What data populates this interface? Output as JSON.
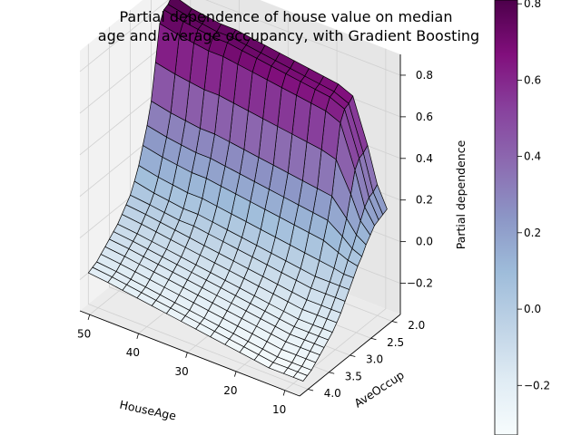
{
  "chart_data": {
    "type": "surface3d",
    "title_lines": [
      "Partial dependence of house value on median",
      "age and average occupancy, with Gradient Boosting"
    ],
    "xlabel": "HouseAge",
    "ylabel": "AveOccup",
    "zlabel": "Partial dependence",
    "x_ticks": [
      "50",
      "40",
      "30",
      "20",
      "10"
    ],
    "y_ticks": [
      "2.0",
      "2.5",
      "3.0",
      "3.5",
      "4.0"
    ],
    "z_ticks": [
      "0.8",
      "0.6",
      "0.4",
      "0.2",
      "0.0",
      "−0.2"
    ],
    "xlim": [
      7,
      52
    ],
    "ylim": [
      1.8,
      4.2
    ],
    "zlim": [
      -0.35,
      0.9
    ],
    "colormap": "BuPu",
    "colorbar": {
      "min": -0.33,
      "max": 0.81,
      "ticks": [
        "0.8",
        "0.6",
        "0.4",
        "0.2",
        "0.0",
        "−0.2"
      ]
    },
    "surface_y_values": [
      2.0,
      2.1,
      2.2,
      2.3,
      2.4,
      2.5,
      2.6,
      2.7,
      2.8,
      2.9,
      3.0,
      3.1,
      3.2,
      3.3,
      3.4,
      3.5,
      3.6,
      3.7,
      3.8,
      3.9,
      4.0
    ],
    "surface_series": [
      {
        "house_age": 52,
        "values": [
          0.81,
          0.78,
          0.77,
          0.72,
          0.55,
          0.38,
          0.28,
          0.2,
          0.12,
          0.06,
          0.01,
          -0.02,
          -0.05,
          -0.08,
          -0.1,
          -0.12,
          -0.14,
          -0.16,
          -0.18,
          -0.19,
          -0.2
        ]
      },
      {
        "house_age": 48,
        "values": [
          0.78,
          0.76,
          0.75,
          0.7,
          0.53,
          0.36,
          0.26,
          0.18,
          0.1,
          0.04,
          0.0,
          -0.03,
          -0.06,
          -0.09,
          -0.11,
          -0.13,
          -0.15,
          -0.17,
          -0.19,
          -0.2,
          -0.21
        ]
      },
      {
        "house_age": 45,
        "values": [
          0.77,
          0.75,
          0.74,
          0.69,
          0.52,
          0.35,
          0.25,
          0.17,
          0.09,
          0.03,
          -0.01,
          -0.04,
          -0.07,
          -0.1,
          -0.12,
          -0.14,
          -0.16,
          -0.18,
          -0.2,
          -0.21,
          -0.22
        ]
      },
      {
        "house_age": 42,
        "values": [
          0.76,
          0.74,
          0.73,
          0.68,
          0.51,
          0.34,
          0.24,
          0.16,
          0.08,
          0.02,
          -0.02,
          -0.05,
          -0.08,
          -0.11,
          -0.13,
          -0.15,
          -0.17,
          -0.19,
          -0.21,
          -0.22,
          -0.23
        ]
      },
      {
        "house_age": 39,
        "values": [
          0.76,
          0.74,
          0.73,
          0.68,
          0.51,
          0.34,
          0.24,
          0.16,
          0.08,
          0.02,
          -0.02,
          -0.06,
          -0.09,
          -0.12,
          -0.14,
          -0.16,
          -0.18,
          -0.2,
          -0.22,
          -0.23,
          -0.24
        ]
      },
      {
        "house_age": 36,
        "values": [
          0.75,
          0.73,
          0.72,
          0.67,
          0.5,
          0.33,
          0.23,
          0.15,
          0.07,
          0.01,
          -0.03,
          -0.07,
          -0.1,
          -0.13,
          -0.15,
          -0.17,
          -0.19,
          -0.21,
          -0.23,
          -0.24,
          -0.25
        ]
      },
      {
        "house_age": 33,
        "values": [
          0.74,
          0.72,
          0.71,
          0.66,
          0.49,
          0.32,
          0.22,
          0.14,
          0.06,
          0.0,
          -0.04,
          -0.08,
          -0.11,
          -0.14,
          -0.16,
          -0.18,
          -0.2,
          -0.22,
          -0.24,
          -0.25,
          -0.26
        ]
      },
      {
        "house_age": 30,
        "values": [
          0.73,
          0.71,
          0.7,
          0.65,
          0.48,
          0.31,
          0.21,
          0.13,
          0.05,
          -0.01,
          -0.05,
          -0.09,
          -0.12,
          -0.15,
          -0.17,
          -0.19,
          -0.21,
          -0.23,
          -0.25,
          -0.26,
          -0.27
        ]
      },
      {
        "house_age": 27,
        "values": [
          0.72,
          0.7,
          0.69,
          0.64,
          0.47,
          0.3,
          0.2,
          0.12,
          0.04,
          -0.02,
          -0.06,
          -0.1,
          -0.13,
          -0.16,
          -0.18,
          -0.2,
          -0.22,
          -0.24,
          -0.26,
          -0.27,
          -0.28
        ]
      },
      {
        "house_age": 24,
        "values": [
          0.71,
          0.69,
          0.68,
          0.63,
          0.46,
          0.29,
          0.19,
          0.11,
          0.03,
          -0.03,
          -0.07,
          -0.11,
          -0.14,
          -0.17,
          -0.19,
          -0.21,
          -0.23,
          -0.25,
          -0.27,
          -0.28,
          -0.29
        ]
      },
      {
        "house_age": 21,
        "values": [
          0.7,
          0.68,
          0.67,
          0.62,
          0.45,
          0.28,
          0.18,
          0.1,
          0.02,
          -0.04,
          -0.08,
          -0.12,
          -0.15,
          -0.18,
          -0.2,
          -0.22,
          -0.24,
          -0.26,
          -0.28,
          -0.29,
          -0.3
        ]
      },
      {
        "house_age": 18,
        "values": [
          0.69,
          0.67,
          0.66,
          0.61,
          0.44,
          0.27,
          0.17,
          0.09,
          0.01,
          -0.05,
          -0.09,
          -0.13,
          -0.16,
          -0.19,
          -0.21,
          -0.23,
          -0.25,
          -0.27,
          -0.29,
          -0.3,
          -0.31
        ]
      },
      {
        "house_age": 15,
        "values": [
          0.66,
          0.64,
          0.63,
          0.58,
          0.42,
          0.26,
          0.16,
          0.08,
          0.0,
          -0.06,
          -0.1,
          -0.14,
          -0.17,
          -0.2,
          -0.22,
          -0.24,
          -0.26,
          -0.28,
          -0.3,
          -0.31,
          -0.32
        ]
      },
      {
        "house_age": 12,
        "values": [
          0.45,
          0.43,
          0.42,
          0.38,
          0.28,
          0.18,
          0.11,
          0.05,
          -0.01,
          -0.06,
          -0.1,
          -0.14,
          -0.17,
          -0.2,
          -0.22,
          -0.24,
          -0.26,
          -0.28,
          -0.3,
          -0.31,
          -0.32
        ]
      },
      {
        "house_age": 10,
        "values": [
          0.28,
          0.26,
          0.25,
          0.22,
          0.17,
          0.12,
          0.07,
          0.03,
          -0.02,
          -0.06,
          -0.1,
          -0.14,
          -0.17,
          -0.2,
          -0.22,
          -0.24,
          -0.26,
          -0.28,
          -0.3,
          -0.31,
          -0.32
        ]
      },
      {
        "house_age": 8,
        "values": [
          0.18,
          0.17,
          0.16,
          0.15,
          0.12,
          0.09,
          0.05,
          0.02,
          -0.02,
          -0.06,
          -0.1,
          -0.14,
          -0.17,
          -0.2,
          -0.22,
          -0.24,
          -0.26,
          -0.28,
          -0.3,
          -0.31,
          -0.32
        ]
      }
    ]
  }
}
